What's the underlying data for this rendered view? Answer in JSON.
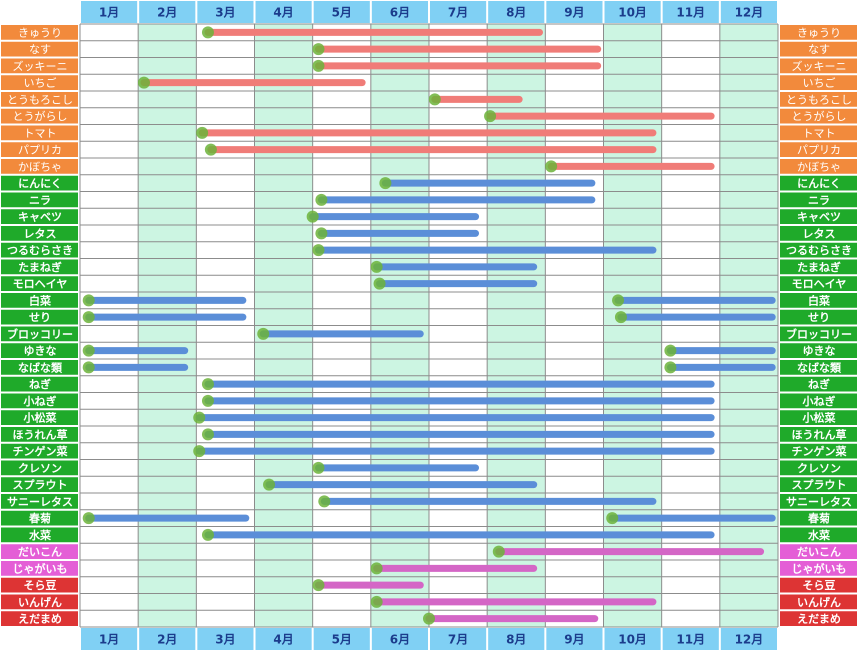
{
  "chart_data": {
    "type": "gantt",
    "months": [
      "1月",
      "2月",
      "3月",
      "4月",
      "5月",
      "6月",
      "7月",
      "8月",
      "9月",
      "10月",
      "11月",
      "12月"
    ],
    "xlim": [
      0,
      12
    ],
    "column_colors": [
      "#ffffff",
      "#ccf5e2"
    ],
    "header_color": "#80d0f4",
    "groups": [
      {
        "label_color": "#f28a3c",
        "bar_color": "#f07c78",
        "rows": [
          {
            "name": "きゅうり",
            "bars": [
              {
                "start": 2.2,
                "end": 7.9
              }
            ]
          },
          {
            "name": "なす",
            "bars": [
              {
                "start": 4.1,
                "end": 8.9
              }
            ]
          },
          {
            "name": "ズッキーニ",
            "bars": [
              {
                "start": 4.1,
                "end": 8.9
              }
            ]
          },
          {
            "name": "いちご",
            "bars": [
              {
                "start": 1.1,
                "end": 4.85
              }
            ]
          },
          {
            "name": "とうもろこし",
            "bars": [
              {
                "start": 6.1,
                "end": 7.55
              }
            ]
          },
          {
            "name": "とうがらし",
            "bars": [
              {
                "start": 7.05,
                "end": 10.85
              }
            ]
          },
          {
            "name": "トマト",
            "bars": [
              {
                "start": 2.1,
                "end": 9.85
              }
            ]
          },
          {
            "name": "パプリカ",
            "bars": [
              {
                "start": 2.25,
                "end": 9.85
              }
            ]
          },
          {
            "name": "かぼちゃ",
            "bars": [
              {
                "start": 8.1,
                "end": 10.85
              }
            ]
          }
        ]
      },
      {
        "label_color": "#1faa2a",
        "bar_color": "#5b8ed8",
        "rows": [
          {
            "name": "にんにく",
            "bars": [
              {
                "start": 5.25,
                "end": 8.8
              }
            ]
          },
          {
            "name": "ニラ",
            "bars": [
              {
                "start": 4.15,
                "end": 8.8
              }
            ]
          },
          {
            "name": "キャベツ",
            "bars": [
              {
                "start": 4.0,
                "end": 6.8
              }
            ]
          },
          {
            "name": "レタス",
            "bars": [
              {
                "start": 4.15,
                "end": 6.8
              }
            ]
          },
          {
            "name": "つるむらさき",
            "bars": [
              {
                "start": 4.1,
                "end": 9.85
              }
            ]
          },
          {
            "name": "たまねぎ",
            "bars": [
              {
                "start": 5.1,
                "end": 7.8
              }
            ]
          },
          {
            "name": "モロヘイヤ",
            "bars": [
              {
                "start": 5.15,
                "end": 7.8
              }
            ]
          },
          {
            "name": "白菜",
            "bars": [
              {
                "start": 0.15,
                "end": 2.8
              },
              {
                "start": 9.25,
                "end": 11.9
              }
            ]
          },
          {
            "name": "せり",
            "bars": [
              {
                "start": 0.15,
                "end": 2.8
              },
              {
                "start": 9.3,
                "end": 11.9
              }
            ]
          },
          {
            "name": "ブロッコリー",
            "bars": [
              {
                "start": 3.15,
                "end": 5.85
              }
            ]
          },
          {
            "name": "ゆきな",
            "bars": [
              {
                "start": 0.15,
                "end": 1.8
              },
              {
                "start": 10.15,
                "end": 11.9
              }
            ]
          },
          {
            "name": "なばな類",
            "bars": [
              {
                "start": 0.15,
                "end": 1.8
              },
              {
                "start": 10.15,
                "end": 11.9
              }
            ]
          },
          {
            "name": "ねぎ",
            "bars": [
              {
                "start": 2.2,
                "end": 10.85
              }
            ]
          },
          {
            "name": "小ねぎ",
            "bars": [
              {
                "start": 2.2,
                "end": 10.85
              }
            ]
          },
          {
            "name": "小松菜",
            "bars": [
              {
                "start": 2.05,
                "end": 10.85
              }
            ]
          },
          {
            "name": "ほうれん草",
            "bars": [
              {
                "start": 2.2,
                "end": 10.85
              }
            ]
          },
          {
            "name": "チンゲン菜",
            "bars": [
              {
                "start": 2.05,
                "end": 10.85
              }
            ]
          },
          {
            "name": "クレソン",
            "bars": [
              {
                "start": 4.1,
                "end": 6.8
              }
            ]
          },
          {
            "name": "スプラウト",
            "bars": [
              {
                "start": 3.25,
                "end": 7.8
              }
            ]
          },
          {
            "name": "サニーレタス",
            "bars": [
              {
                "start": 4.2,
                "end": 9.85
              }
            ]
          },
          {
            "name": "春菊",
            "bars": [
              {
                "start": 0.15,
                "end": 2.85
              },
              {
                "start": 9.15,
                "end": 11.9
              }
            ]
          },
          {
            "name": "水菜",
            "bars": [
              {
                "start": 2.2,
                "end": 10.85
              }
            ]
          }
        ]
      },
      {
        "label_color": "#e45ed6",
        "bar_color": "#d466c6",
        "rows": [
          {
            "name": "だいこん",
            "bars": [
              {
                "start": 7.2,
                "end": 11.7
              }
            ]
          },
          {
            "name": "じゃがいも",
            "bars": [
              {
                "start": 5.1,
                "end": 7.8
              }
            ]
          }
        ]
      },
      {
        "label_color": "#dd3434",
        "bar_color": "#d466c6",
        "rows": [
          {
            "name": "そら豆",
            "bars": [
              {
                "start": 4.1,
                "end": 5.85
              }
            ]
          },
          {
            "name": "いんげん",
            "bars": [
              {
                "start": 5.1,
                "end": 9.85
              }
            ]
          },
          {
            "name": "えだまめ",
            "bars": [
              {
                "start": 6.0,
                "end": 8.85
              }
            ]
          }
        ]
      }
    ]
  }
}
